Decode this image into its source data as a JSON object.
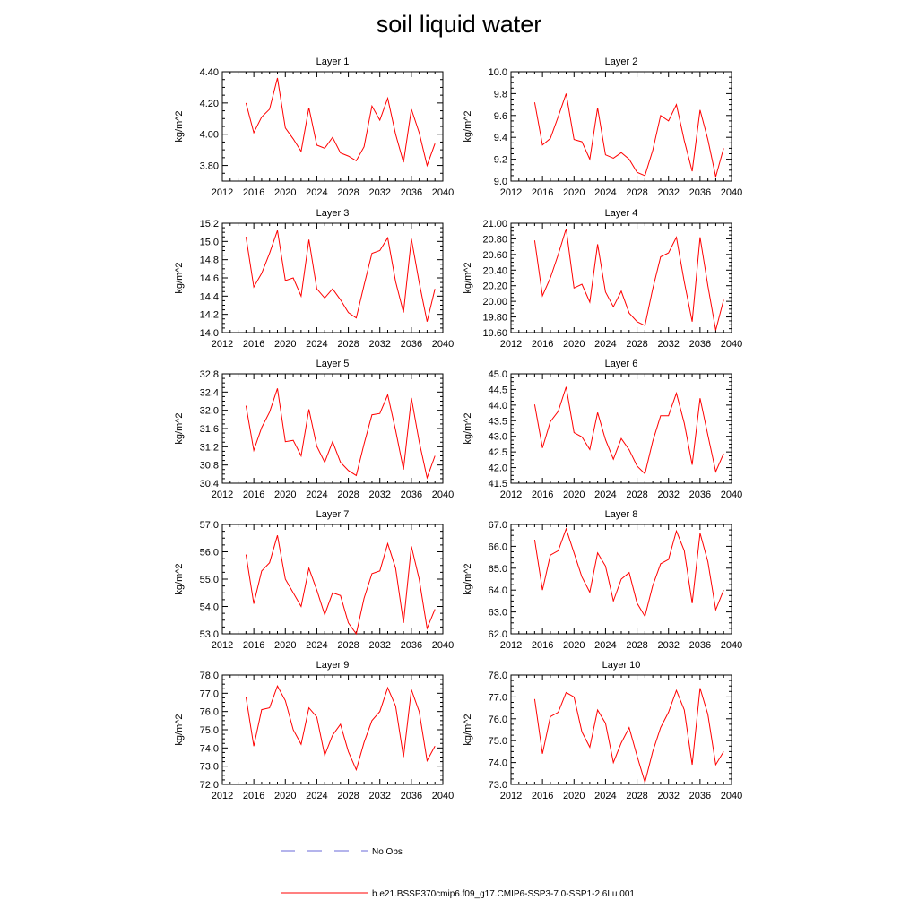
{
  "title": "soil liquid water",
  "legend": {
    "entries": [
      {
        "label": "No Obs",
        "color": "#6a6ad8",
        "style": "dashed"
      },
      {
        "label": "b.e21.BSSP370cmip6.f09_g17.CMIP6-SSP3-7.0-SSP1-2.6Lu.001",
        "color": "#ff0000",
        "style": "solid"
      }
    ]
  },
  "colors": {
    "series": "#ff0000",
    "axis": "#000000"
  },
  "chart_data": [
    {
      "type": "line",
      "title": "Layer 1",
      "ylabel": "kg/m^2",
      "xlim": [
        2012,
        2040
      ],
      "xticks": [
        "2012",
        "2016",
        "2020",
        "2024",
        "2028",
        "2032",
        "2036",
        "2040"
      ],
      "ylim": [
        3.7,
        4.4
      ],
      "yticks": [
        "3.80",
        "4.00",
        "4.20",
        "4.40"
      ],
      "x": [
        2015,
        2016,
        2017,
        2018,
        2019,
        2020,
        2021,
        2022,
        2023,
        2024,
        2025,
        2026,
        2027,
        2028,
        2029,
        2030,
        2031,
        2032,
        2033,
        2034,
        2035,
        2036,
        2037,
        2038,
        2039
      ],
      "series": [
        {
          "values": [
            4.2,
            4.01,
            4.11,
            4.16,
            4.36,
            4.04,
            3.97,
            3.89,
            4.17,
            3.93,
            3.91,
            3.98,
            3.88,
            3.86,
            3.83,
            3.92,
            4.18,
            4.09,
            4.23,
            4.0,
            3.82,
            4.16,
            4.01,
            3.8,
            3.94
          ]
        }
      ]
    },
    {
      "type": "line",
      "title": "Layer 2",
      "ylabel": "kg/m^2",
      "xlim": [
        2012,
        2040
      ],
      "xticks": [
        "2012",
        "2016",
        "2020",
        "2024",
        "2028",
        "2032",
        "2036",
        "2040"
      ],
      "ylim": [
        9.0,
        10.0
      ],
      "yticks": [
        "9.0",
        "9.2",
        "9.4",
        "9.6",
        "9.8",
        "10.0"
      ],
      "x": [
        2015,
        2016,
        2017,
        2018,
        2019,
        2020,
        2021,
        2022,
        2023,
        2024,
        2025,
        2026,
        2027,
        2028,
        2029,
        2030,
        2031,
        2032,
        2033,
        2034,
        2035,
        2036,
        2037,
        2038,
        2039
      ],
      "series": [
        {
          "values": [
            9.72,
            9.33,
            9.39,
            9.59,
            9.8,
            9.38,
            9.36,
            9.2,
            9.67,
            9.24,
            9.21,
            9.26,
            9.2,
            9.08,
            9.05,
            9.28,
            9.6,
            9.55,
            9.7,
            9.37,
            9.09,
            9.65,
            9.38,
            9.04,
            9.3
          ]
        }
      ]
    },
    {
      "type": "line",
      "title": "Layer 3",
      "ylabel": "kg/m^2",
      "xlim": [
        2012,
        2040
      ],
      "xticks": [
        "2012",
        "2016",
        "2020",
        "2024",
        "2028",
        "2032",
        "2036",
        "2040"
      ],
      "ylim": [
        14.0,
        15.2
      ],
      "yticks": [
        "14.0",
        "14.2",
        "14.4",
        "14.6",
        "14.8",
        "15.0",
        "15.2"
      ],
      "x": [
        2015,
        2016,
        2017,
        2018,
        2019,
        2020,
        2021,
        2022,
        2023,
        2024,
        2025,
        2026,
        2027,
        2028,
        2029,
        2030,
        2031,
        2032,
        2033,
        2034,
        2035,
        2036,
        2037,
        2038,
        2039
      ],
      "series": [
        {
          "values": [
            15.05,
            14.5,
            14.65,
            14.87,
            15.12,
            14.57,
            14.6,
            14.4,
            15.02,
            14.48,
            14.38,
            14.48,
            14.36,
            14.22,
            14.16,
            14.52,
            14.87,
            14.9,
            15.04,
            14.56,
            14.22,
            15.03,
            14.55,
            14.12,
            14.48
          ]
        }
      ]
    },
    {
      "type": "line",
      "title": "Layer 4",
      "ylabel": "kg/m^2",
      "xlim": [
        2012,
        2040
      ],
      "xticks": [
        "2012",
        "2016",
        "2020",
        "2024",
        "2028",
        "2032",
        "2036",
        "2040"
      ],
      "ylim": [
        19.6,
        21.0
      ],
      "yticks": [
        "19.60",
        "19.80",
        "20.00",
        "20.20",
        "20.40",
        "20.60",
        "20.80",
        "21.00"
      ],
      "x": [
        2015,
        2016,
        2017,
        2018,
        2019,
        2020,
        2021,
        2022,
        2023,
        2024,
        2025,
        2026,
        2027,
        2028,
        2029,
        2030,
        2031,
        2032,
        2033,
        2034,
        2035,
        2036,
        2037,
        2038,
        2039
      ],
      "series": [
        {
          "values": [
            20.78,
            20.07,
            20.3,
            20.6,
            20.93,
            20.17,
            20.22,
            19.99,
            20.73,
            20.12,
            19.93,
            20.13,
            19.85,
            19.74,
            19.69,
            20.16,
            20.57,
            20.62,
            20.82,
            20.25,
            19.74,
            20.82,
            20.2,
            19.63,
            20.02
          ]
        }
      ]
    },
    {
      "type": "line",
      "title": "Layer 5",
      "ylabel": "kg/m^2",
      "xlim": [
        2012,
        2040
      ],
      "xticks": [
        "2012",
        "2016",
        "2020",
        "2024",
        "2028",
        "2032",
        "2036",
        "2040"
      ],
      "ylim": [
        30.4,
        32.8
      ],
      "yticks": [
        "30.4",
        "30.8",
        "31.2",
        "31.6",
        "32.0",
        "32.4",
        "32.8"
      ],
      "x": [
        2015,
        2016,
        2017,
        2018,
        2019,
        2020,
        2021,
        2022,
        2023,
        2024,
        2025,
        2026,
        2027,
        2028,
        2029,
        2030,
        2031,
        2032,
        2033,
        2034,
        2035,
        2036,
        2037,
        2038,
        2039
      ],
      "series": [
        {
          "values": [
            32.1,
            31.12,
            31.62,
            31.96,
            32.48,
            31.31,
            31.34,
            31.0,
            32.02,
            31.21,
            30.86,
            31.31,
            30.86,
            30.68,
            30.57,
            31.26,
            31.9,
            31.93,
            32.34,
            31.56,
            30.7,
            32.27,
            31.31,
            30.52,
            31.0
          ]
        }
      ]
    },
    {
      "type": "line",
      "title": "Layer 6",
      "ylabel": "kg/m^2",
      "xlim": [
        2012,
        2040
      ],
      "xticks": [
        "2012",
        "2016",
        "2020",
        "2024",
        "2028",
        "2032",
        "2036",
        "2040"
      ],
      "ylim": [
        41.5,
        45.0
      ],
      "yticks": [
        "41.5",
        "42.0",
        "42.5",
        "43.0",
        "43.5",
        "44.0",
        "44.5",
        "45.0"
      ],
      "x": [
        2015,
        2016,
        2017,
        2018,
        2019,
        2020,
        2021,
        2022,
        2023,
        2024,
        2025,
        2026,
        2027,
        2028,
        2029,
        2030,
        2031,
        2032,
        2033,
        2034,
        2035,
        2036,
        2037,
        2038,
        2039
      ],
      "series": [
        {
          "values": [
            44.02,
            42.63,
            43.47,
            43.8,
            44.58,
            43.12,
            42.98,
            42.58,
            43.76,
            42.89,
            42.27,
            42.93,
            42.57,
            42.05,
            41.8,
            42.84,
            43.66,
            43.66,
            44.38,
            43.42,
            42.09,
            44.22,
            43.04,
            41.87,
            42.45
          ]
        }
      ]
    },
    {
      "type": "line",
      "title": "Layer 7",
      "ylabel": "kg/m^2",
      "xlim": [
        2012,
        2040
      ],
      "xticks": [
        "2012",
        "2016",
        "2020",
        "2024",
        "2028",
        "2032",
        "2036",
        "2040"
      ],
      "ylim": [
        53.0,
        57.0
      ],
      "yticks": [
        "53.0",
        "54.0",
        "55.0",
        "56.0",
        "57.0"
      ],
      "x": [
        2015,
        2016,
        2017,
        2018,
        2019,
        2020,
        2021,
        2022,
        2023,
        2024,
        2025,
        2026,
        2027,
        2028,
        2029,
        2030,
        2031,
        2032,
        2033,
        2034,
        2035,
        2036,
        2037,
        2038,
        2039
      ],
      "series": [
        {
          "values": [
            55.9,
            54.1,
            55.3,
            55.6,
            56.6,
            55.0,
            54.5,
            54.0,
            55.4,
            54.6,
            53.7,
            54.5,
            54.4,
            53.4,
            53.0,
            54.3,
            55.2,
            55.3,
            56.3,
            55.4,
            53.4,
            56.2,
            55.0,
            53.2,
            53.9
          ]
        }
      ]
    },
    {
      "type": "line",
      "title": "Layer 8",
      "ylabel": "kg/m^2",
      "xlim": [
        2012,
        2040
      ],
      "xticks": [
        "2012",
        "2016",
        "2020",
        "2024",
        "2028",
        "2032",
        "2036",
        "2040"
      ],
      "ylim": [
        62.0,
        67.0
      ],
      "yticks": [
        "62.0",
        "63.0",
        "64.0",
        "65.0",
        "66.0",
        "67.0"
      ],
      "x": [
        2015,
        2016,
        2017,
        2018,
        2019,
        2020,
        2021,
        2022,
        2023,
        2024,
        2025,
        2026,
        2027,
        2028,
        2029,
        2030,
        2031,
        2032,
        2033,
        2034,
        2035,
        2036,
        2037,
        2038,
        2039
      ],
      "series": [
        {
          "values": [
            66.3,
            64.0,
            65.6,
            65.8,
            66.8,
            65.7,
            64.6,
            63.9,
            65.7,
            65.1,
            63.5,
            64.5,
            64.8,
            63.4,
            62.8,
            64.2,
            65.2,
            65.4,
            66.7,
            65.8,
            63.4,
            66.6,
            65.3,
            63.1,
            64.0
          ]
        }
      ]
    },
    {
      "type": "line",
      "title": "Layer 9",
      "ylabel": "kg/m^2",
      "xlim": [
        2012,
        2040
      ],
      "xticks": [
        "2012",
        "2016",
        "2020",
        "2024",
        "2028",
        "2032",
        "2036",
        "2040"
      ],
      "ylim": [
        72.0,
        78.0
      ],
      "yticks": [
        "72.0",
        "73.0",
        "74.0",
        "75.0",
        "76.0",
        "77.0",
        "78.0"
      ],
      "x": [
        2015,
        2016,
        2017,
        2018,
        2019,
        2020,
        2021,
        2022,
        2023,
        2024,
        2025,
        2026,
        2027,
        2028,
        2029,
        2030,
        2031,
        2032,
        2033,
        2034,
        2035,
        2036,
        2037,
        2038,
        2039
      ],
      "series": [
        {
          "values": [
            76.8,
            74.1,
            76.1,
            76.2,
            77.4,
            76.6,
            75.0,
            74.2,
            76.2,
            75.7,
            73.6,
            74.7,
            75.3,
            73.8,
            72.8,
            74.3,
            75.5,
            76.0,
            77.3,
            76.3,
            73.5,
            77.2,
            76.0,
            73.3,
            74.1
          ]
        }
      ]
    },
    {
      "type": "line",
      "title": "Layer 10",
      "ylabel": "kg/m^2",
      "xlim": [
        2012,
        2040
      ],
      "xticks": [
        "2012",
        "2016",
        "2020",
        "2024",
        "2028",
        "2032",
        "2036",
        "2040"
      ],
      "ylim": [
        73.0,
        78.0
      ],
      "yticks": [
        "73.0",
        "74.0",
        "75.0",
        "76.0",
        "77.0",
        "78.0"
      ],
      "x": [
        2015,
        2016,
        2017,
        2018,
        2019,
        2020,
        2021,
        2022,
        2023,
        2024,
        2025,
        2026,
        2027,
        2028,
        2029,
        2030,
        2031,
        2032,
        2033,
        2034,
        2035,
        2036,
        2037,
        2038,
        2039
      ],
      "series": [
        {
          "values": [
            76.9,
            74.4,
            76.1,
            76.3,
            77.2,
            77.0,
            75.4,
            74.7,
            76.4,
            75.8,
            74.0,
            74.9,
            75.6,
            74.3,
            73.1,
            74.5,
            75.6,
            76.3,
            77.3,
            76.4,
            73.9,
            77.4,
            76.2,
            73.9,
            74.5
          ]
        }
      ]
    }
  ]
}
